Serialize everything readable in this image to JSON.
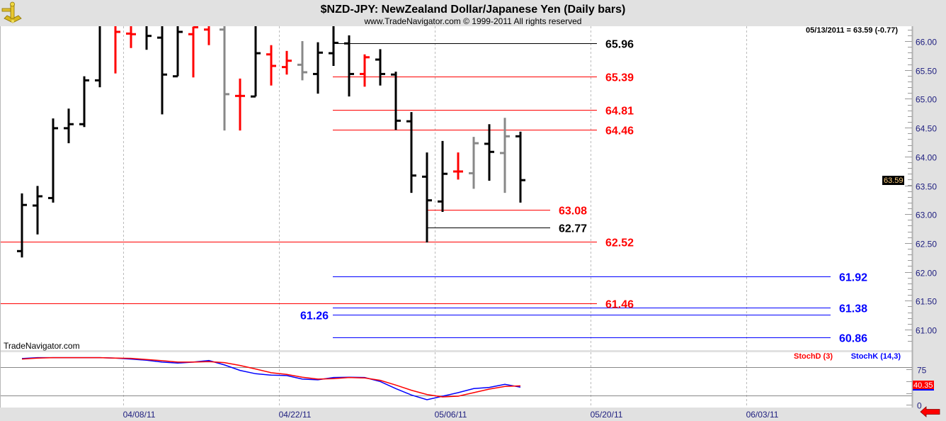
{
  "header": {
    "title": "$NZD-JPY:  NewZealand Dollar/Japanese Yen  (Daily bars)",
    "subtitle": "www.TradeNavigator.com © 1999-2011 All rights reserved",
    "logo_icon": "sextant-icon"
  },
  "watermark": "TradeNavigator.com",
  "status_readout": "05/13/2011 = 63.59 (-0.77)",
  "nav_arrow_icon": "red-left-arrow-icon",
  "colors": {
    "up": "#000000",
    "down": "#ff0000",
    "neutral": "#888888",
    "stochD": "#ff0000",
    "stochK": "#0000ff",
    "axis_text": "#202080"
  },
  "chart_data": [
    {
      "type": "ohlc",
      "panel": "price",
      "ylim": [
        60.75,
        66.26
      ],
      "y_ticks": [
        "61.00",
        "61.50",
        "62.00",
        "62.50",
        "63.00",
        "63.50",
        "64.00",
        "64.50",
        "65.00",
        "65.50",
        "66.00"
      ],
      "x_ticks": [
        "04/08/11",
        "04/22/11",
        "05/06/11",
        "05/20/11",
        "06/03/11"
      ],
      "last_price_label": "63.59",
      "bars": [
        {
          "date": "03/30/11",
          "o": 62.36,
          "h": 63.36,
          "l": 62.25,
          "c": 63.16,
          "color": "up"
        },
        {
          "date": "03/31/11",
          "o": 63.15,
          "h": 63.49,
          "l": 62.65,
          "c": 63.31,
          "color": "up"
        },
        {
          "date": "04/01/11",
          "o": 63.28,
          "h": 64.66,
          "l": 63.2,
          "c": 64.49,
          "color": "up"
        },
        {
          "date": "04/04/11",
          "o": 64.49,
          "h": 64.83,
          "l": 64.23,
          "c": 64.56,
          "color": "up"
        },
        {
          "date": "04/05/11",
          "o": 64.56,
          "h": 65.39,
          "l": 64.51,
          "c": 65.32,
          "color": "up"
        },
        {
          "date": "04/06/11",
          "o": 65.32,
          "h": 66.45,
          "l": 65.2,
          "c": 66.3,
          "color": "up"
        },
        {
          "date": "04/07/11",
          "o": 66.35,
          "h": 66.4,
          "l": 65.44,
          "c": 66.16,
          "color": "down"
        },
        {
          "date": "04/08/11",
          "o": 66.13,
          "h": 66.35,
          "l": 65.88,
          "c": 66.12,
          "color": "down"
        },
        {
          "date": "04/11/11",
          "o": 66.3,
          "h": 66.4,
          "l": 65.85,
          "c": 66.09,
          "color": "up"
        },
        {
          "date": "04/12/11",
          "o": 66.06,
          "h": 66.45,
          "l": 64.73,
          "c": 65.42,
          "color": "up"
        },
        {
          "date": "04/13/11",
          "o": 65.39,
          "h": 66.4,
          "l": 65.39,
          "c": 66.16,
          "color": "up"
        },
        {
          "date": "04/14/11",
          "o": 66.12,
          "h": 66.25,
          "l": 65.37,
          "c": 66.24,
          "color": "down"
        },
        {
          "date": "04/15/11",
          "o": 66.2,
          "h": 66.45,
          "l": 65.93,
          "c": 66.3,
          "color": "down"
        },
        {
          "date": "04/18/11",
          "o": 66.2,
          "h": 66.3,
          "l": 64.45,
          "c": 65.08,
          "color": "neutral"
        },
        {
          "date": "04/19/11",
          "o": 65.05,
          "h": 65.35,
          "l": 64.45,
          "c": 65.05,
          "color": "down"
        },
        {
          "date": "04/20/11",
          "o": 65.04,
          "h": 66.45,
          "l": 65.04,
          "c": 65.79,
          "color": "up"
        },
        {
          "date": "04/21/11",
          "o": 65.77,
          "h": 65.93,
          "l": 65.23,
          "c": 65.57,
          "color": "down"
        },
        {
          "date": "04/22/11",
          "o": 65.55,
          "h": 65.83,
          "l": 65.42,
          "c": 65.66,
          "color": "down"
        },
        {
          "date": "04/25/11",
          "o": 65.59,
          "h": 66.0,
          "l": 65.32,
          "c": 65.46,
          "color": "neutral"
        },
        {
          "date": "04/26/11",
          "o": 65.43,
          "h": 65.98,
          "l": 65.09,
          "c": 65.8,
          "color": "up"
        },
        {
          "date": "04/27/11",
          "o": 65.79,
          "h": 66.26,
          "l": 65.57,
          "c": 65.97,
          "color": "up"
        },
        {
          "date": "04/28/11",
          "o": 65.96,
          "h": 66.1,
          "l": 65.04,
          "c": 65.43,
          "color": "up"
        },
        {
          "date": "04/29/11",
          "o": 65.43,
          "h": 65.77,
          "l": 65.21,
          "c": 65.72,
          "color": "down"
        },
        {
          "date": "05/02/11",
          "o": 65.68,
          "h": 65.86,
          "l": 65.23,
          "c": 65.43,
          "color": "up"
        },
        {
          "date": "05/03/11",
          "o": 65.42,
          "h": 65.47,
          "l": 64.46,
          "c": 64.62,
          "color": "up"
        },
        {
          "date": "05/04/11",
          "o": 64.61,
          "h": 64.77,
          "l": 63.37,
          "c": 63.67,
          "color": "up"
        },
        {
          "date": "05/05/11",
          "o": 63.65,
          "h": 64.07,
          "l": 62.51,
          "c": 63.24,
          "color": "up"
        },
        {
          "date": "05/06/11",
          "o": 63.22,
          "h": 64.27,
          "l": 63.04,
          "c": 63.7,
          "color": "up"
        },
        {
          "date": "05/09/11",
          "o": 63.74,
          "h": 64.07,
          "l": 63.6,
          "c": 63.74,
          "color": "down"
        },
        {
          "date": "05/10/11",
          "o": 63.71,
          "h": 64.34,
          "l": 63.44,
          "c": 64.23,
          "color": "neutral"
        },
        {
          "date": "05/11/11",
          "o": 64.22,
          "h": 64.56,
          "l": 63.58,
          "c": 64.08,
          "color": "up"
        },
        {
          "date": "05/12/11",
          "o": 64.06,
          "h": 64.67,
          "l": 63.37,
          "c": 64.35,
          "color": "neutral"
        },
        {
          "date": "05/13/11",
          "o": 64.35,
          "h": 64.43,
          "l": 63.2,
          "c": 63.59,
          "color": "up"
        }
      ],
      "levels": [
        {
          "label": "65.96",
          "value": 65.96,
          "color": "#000000",
          "from": "04/27/11",
          "to": "05/20/11",
          "label_side": "right"
        },
        {
          "label": "65.39",
          "value": 65.39,
          "color": "#ff0000",
          "from": "04/27/11",
          "to": "05/20/11",
          "label_side": "right"
        },
        {
          "label": "64.81",
          "value": 64.81,
          "color": "#ff0000",
          "from": "04/27/11",
          "to": "05/20/11",
          "label_side": "right"
        },
        {
          "label": "64.46",
          "value": 64.46,
          "color": "#ff0000",
          "from": "04/27/11",
          "to": "05/20/11",
          "label_side": "right"
        },
        {
          "label": "63.08",
          "value": 63.08,
          "color": "#ff0000",
          "from": "05/05/11",
          "to": "05/17/11",
          "label_side": "right"
        },
        {
          "label": "62.77",
          "value": 62.77,
          "color": "#000000",
          "from": "05/05/11",
          "to": "05/17/11",
          "label_side": "right"
        },
        {
          "label": "62.52",
          "value": 62.52,
          "color": "#ff0000",
          "from": "start",
          "to": "05/20/11",
          "label_side": "right"
        },
        {
          "label": "61.92",
          "value": 61.92,
          "color": "#0000ff",
          "from": "04/27/11",
          "to": "06/10/11",
          "label_side": "right"
        },
        {
          "label": "61.46",
          "value": 61.46,
          "color": "#ff0000",
          "from": "start",
          "to": "05/20/11",
          "label_side": "right"
        },
        {
          "label": "61.38",
          "value": 61.38,
          "color": "#0000ff",
          "from": "04/27/11",
          "to": "06/10/11",
          "label_side": "right"
        },
        {
          "label": "61.26",
          "value": 61.26,
          "color": "#0000ff",
          "from": "04/27/11",
          "to": "06/10/11",
          "label_side": "left"
        },
        {
          "label": "60.86",
          "value": 60.86,
          "color": "#0000ff",
          "from": "04/27/11",
          "to": "06/10/11",
          "label_side": "right"
        }
      ]
    },
    {
      "type": "line",
      "panel": "stochastic",
      "ylim": [
        0,
        100
      ],
      "y_ticks": [
        "75",
        "0"
      ],
      "reference_lines": [
        80,
        20
      ],
      "last_value_label": "40.35",
      "series": [
        {
          "name": "StochD (3)",
          "color": "#ff0000",
          "values": [
            97,
            99,
            100,
            100,
            100,
            100,
            99,
            98.5,
            96,
            93.5,
            90.5,
            90.5,
            91.5,
            89.5,
            83.5,
            76,
            68,
            64.5,
            58.5,
            54.5,
            55.5,
            58,
            57,
            52,
            42,
            31,
            22,
            17,
            18.5,
            26,
            33.5,
            39,
            40.35
          ]
        },
        {
          "name": "StochK (14,3)",
          "color": "#0000ff",
          "values": [
            98,
            100,
            100,
            100,
            100,
            100,
            99,
            97,
            94.5,
            90.5,
            88.5,
            90.5,
            94,
            84.5,
            73,
            66,
            63,
            62,
            54.5,
            53,
            58,
            58.5,
            58,
            49.5,
            34.5,
            21,
            11,
            18.5,
            26,
            34.5,
            37,
            43.5,
            37.5
          ]
        }
      ]
    }
  ]
}
